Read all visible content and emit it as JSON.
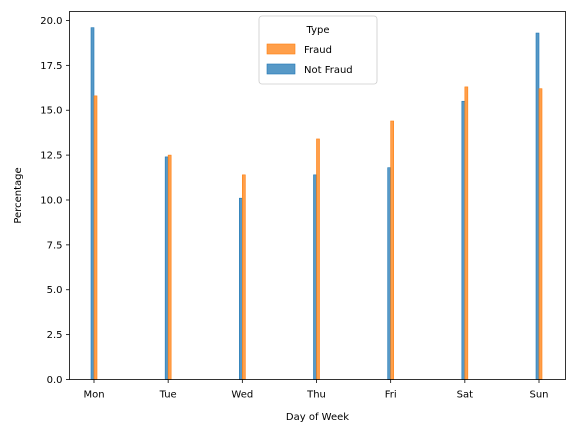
{
  "chart_data": {
    "type": "bar",
    "title": "",
    "xlabel": "Day of Week",
    "ylabel": "Percentage",
    "categories": [
      "Mon",
      "Tue",
      "Wed",
      "Thu",
      "Fri",
      "Sat",
      "Sun"
    ],
    "series": [
      {
        "name": "Fraud",
        "color": "#ff7f0e",
        "values": [
          15.8,
          12.5,
          11.4,
          13.4,
          14.4,
          16.3,
          16.2
        ]
      },
      {
        "name": "Not Fraud",
        "color": "#1f77b4",
        "values": [
          19.6,
          12.4,
          10.1,
          11.4,
          11.8,
          15.5,
          19.3
        ]
      }
    ],
    "ylim": [
      0,
      20.5
    ],
    "yticks": [
      "0.0",
      "2.5",
      "5.0",
      "7.5",
      "10.0",
      "12.5",
      "15.0",
      "17.5",
      "20.0"
    ],
    "legend": {
      "title": "Type",
      "placement": "top-center"
    },
    "grid": false
  }
}
